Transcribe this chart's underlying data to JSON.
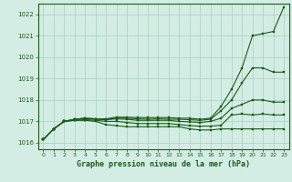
{
  "title": "Graphe pression niveau de la mer (hPa)",
  "bg_color": "#d4ede4",
  "grid_color": "#a8cfc0",
  "line_color": "#1a5c1a",
  "x_ticks": [
    0,
    1,
    2,
    3,
    4,
    5,
    6,
    7,
    8,
    9,
    10,
    11,
    12,
    13,
    14,
    15,
    16,
    17,
    18,
    19,
    20,
    21,
    22,
    23
  ],
  "ylim": [
    1015.7,
    1022.5
  ],
  "yticks": [
    1016,
    1017,
    1018,
    1019,
    1020,
    1021,
    1022
  ],
  "series": [
    [
      1016.15,
      1016.65,
      1017.0,
      1017.05,
      1017.05,
      1017.0,
      1016.85,
      1016.8,
      1016.75,
      1016.75,
      1016.75,
      1016.75,
      1016.75,
      1016.75,
      1016.65,
      1016.6,
      1016.6,
      1016.65,
      1016.65,
      1016.65,
      1016.65,
      1016.65,
      1016.65,
      1016.65
    ],
    [
      1016.15,
      1016.65,
      1017.0,
      1017.05,
      1017.08,
      1017.05,
      1017.0,
      1017.0,
      1016.95,
      1016.9,
      1016.9,
      1016.9,
      1016.9,
      1016.85,
      1016.8,
      1016.78,
      1016.78,
      1016.82,
      1017.3,
      1017.35,
      1017.3,
      1017.35,
      1017.3,
      1017.3
    ],
    [
      1016.15,
      1016.65,
      1017.0,
      1017.1,
      1017.12,
      1017.1,
      1017.08,
      1017.12,
      1017.1,
      1017.05,
      1017.05,
      1017.05,
      1017.05,
      1017.0,
      1016.98,
      1016.95,
      1017.0,
      1017.15,
      1017.6,
      1017.8,
      1018.0,
      1018.0,
      1017.9,
      1017.9
    ],
    [
      1016.15,
      1016.65,
      1017.0,
      1017.1,
      1017.15,
      1017.12,
      1017.1,
      1017.15,
      1017.15,
      1017.12,
      1017.1,
      1017.12,
      1017.1,
      1017.1,
      1017.08,
      1017.05,
      1017.1,
      1017.5,
      1018.0,
      1018.8,
      1019.5,
      1019.5,
      1019.3,
      1019.3
    ],
    [
      1016.15,
      1016.65,
      1017.0,
      1017.1,
      1017.15,
      1017.12,
      1017.12,
      1017.2,
      1017.2,
      1017.18,
      1017.18,
      1017.18,
      1017.18,
      1017.15,
      1017.15,
      1017.1,
      1017.15,
      1017.7,
      1018.5,
      1019.5,
      1021.0,
      1021.1,
      1021.2,
      1022.35
    ]
  ]
}
